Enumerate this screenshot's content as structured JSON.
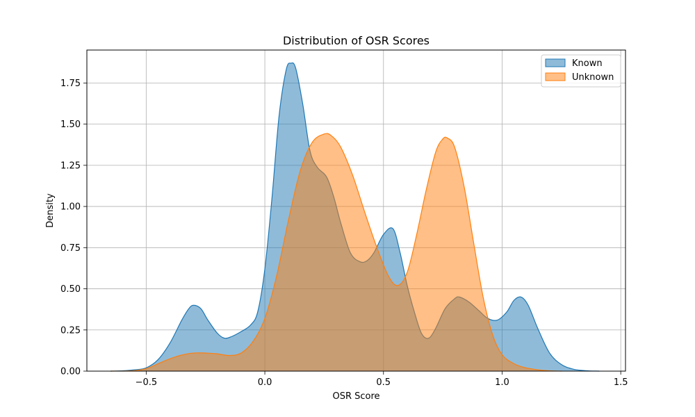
{
  "chart_data": {
    "type": "area",
    "title": "Distribution of OSR Scores",
    "xlabel": "OSR Score",
    "ylabel": "Density",
    "xlim": [
      -0.75,
      1.52
    ],
    "ylim": [
      0,
      1.95
    ],
    "x_ticks": [
      -0.5,
      0.0,
      0.5,
      1.0,
      1.5
    ],
    "x_tick_labels": [
      "−0.5",
      "0.0",
      "0.5",
      "1.0",
      "1.5"
    ],
    "y_ticks": [
      0,
      0.25,
      0.5,
      0.75,
      1.0,
      1.25,
      1.5,
      1.75
    ],
    "y_tick_labels": [
      "0.00",
      "0.25",
      "0.50",
      "0.75",
      "1.00",
      "1.25",
      "1.50",
      "1.75"
    ],
    "grid": true,
    "legend_position": "top-right",
    "series": [
      {
        "name": "Known",
        "color": "#1f77b4",
        "fill_opacity": 0.5,
        "points": [
          [
            -0.65,
            0.0
          ],
          [
            -0.6,
            0.002
          ],
          [
            -0.55,
            0.008
          ],
          [
            -0.5,
            0.02
          ],
          [
            -0.45,
            0.07
          ],
          [
            -0.4,
            0.17
          ],
          [
            -0.35,
            0.31
          ],
          [
            -0.32,
            0.38
          ],
          [
            -0.3,
            0.4
          ],
          [
            -0.27,
            0.38
          ],
          [
            -0.24,
            0.31
          ],
          [
            -0.2,
            0.23
          ],
          [
            -0.17,
            0.2
          ],
          [
            -0.14,
            0.21
          ],
          [
            -0.1,
            0.24
          ],
          [
            -0.06,
            0.28
          ],
          [
            -0.03,
            0.36
          ],
          [
            0.0,
            0.62
          ],
          [
            0.03,
            1.05
          ],
          [
            0.06,
            1.55
          ],
          [
            0.09,
            1.83
          ],
          [
            0.11,
            1.87
          ],
          [
            0.13,
            1.84
          ],
          [
            0.16,
            1.62
          ],
          [
            0.19,
            1.34
          ],
          [
            0.22,
            1.24
          ],
          [
            0.26,
            1.18
          ],
          [
            0.29,
            1.06
          ],
          [
            0.32,
            0.9
          ],
          [
            0.36,
            0.72
          ],
          [
            0.4,
            0.665
          ],
          [
            0.43,
            0.67
          ],
          [
            0.46,
            0.72
          ],
          [
            0.5,
            0.83
          ],
          [
            0.54,
            0.865
          ],
          [
            0.57,
            0.72
          ],
          [
            0.6,
            0.52
          ],
          [
            0.63,
            0.36
          ],
          [
            0.66,
            0.23
          ],
          [
            0.69,
            0.2
          ],
          [
            0.72,
            0.26
          ],
          [
            0.76,
            0.38
          ],
          [
            0.8,
            0.44
          ],
          [
            0.82,
            0.45
          ],
          [
            0.86,
            0.42
          ],
          [
            0.9,
            0.37
          ],
          [
            0.94,
            0.32
          ],
          [
            0.98,
            0.31
          ],
          [
            1.02,
            0.36
          ],
          [
            1.05,
            0.43
          ],
          [
            1.08,
            0.45
          ],
          [
            1.11,
            0.4
          ],
          [
            1.15,
            0.26
          ],
          [
            1.2,
            0.11
          ],
          [
            1.25,
            0.04
          ],
          [
            1.3,
            0.012
          ],
          [
            1.35,
            0.003
          ],
          [
            1.41,
            0.0
          ]
        ]
      },
      {
        "name": "Unknown",
        "color": "#ff7f0e",
        "fill_opacity": 0.5,
        "points": [
          [
            -0.65,
            0.0
          ],
          [
            -0.55,
            0.003
          ],
          [
            -0.5,
            0.015
          ],
          [
            -0.45,
            0.045
          ],
          [
            -0.4,
            0.075
          ],
          [
            -0.35,
            0.098
          ],
          [
            -0.3,
            0.11
          ],
          [
            -0.25,
            0.11
          ],
          [
            -0.2,
            0.105
          ],
          [
            -0.15,
            0.095
          ],
          [
            -0.1,
            0.11
          ],
          [
            -0.05,
            0.18
          ],
          [
            0.0,
            0.32
          ],
          [
            0.05,
            0.58
          ],
          [
            0.1,
            0.92
          ],
          [
            0.15,
            1.22
          ],
          [
            0.2,
            1.39
          ],
          [
            0.25,
            1.44
          ],
          [
            0.28,
            1.43
          ],
          [
            0.32,
            1.36
          ],
          [
            0.37,
            1.19
          ],
          [
            0.42,
            0.97
          ],
          [
            0.47,
            0.76
          ],
          [
            0.52,
            0.58
          ],
          [
            0.56,
            0.52
          ],
          [
            0.6,
            0.6
          ],
          [
            0.64,
            0.83
          ],
          [
            0.68,
            1.1
          ],
          [
            0.72,
            1.33
          ],
          [
            0.75,
            1.41
          ],
          [
            0.77,
            1.415
          ],
          [
            0.8,
            1.36
          ],
          [
            0.84,
            1.12
          ],
          [
            0.88,
            0.78
          ],
          [
            0.92,
            0.45
          ],
          [
            0.96,
            0.22
          ],
          [
            1.0,
            0.1
          ],
          [
            1.05,
            0.045
          ],
          [
            1.1,
            0.02
          ],
          [
            1.15,
            0.008
          ],
          [
            1.2,
            0.002
          ],
          [
            1.25,
            0.0
          ]
        ]
      }
    ]
  }
}
